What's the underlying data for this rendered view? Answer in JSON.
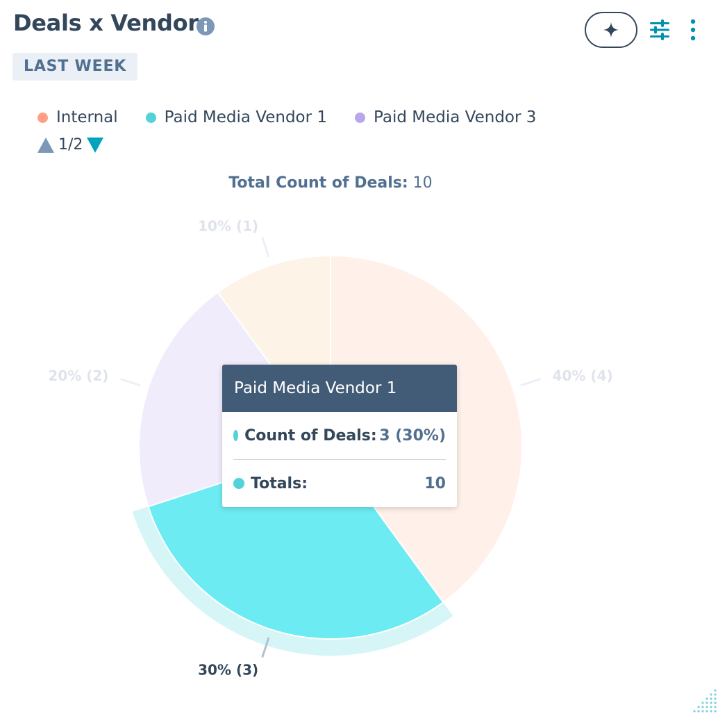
{
  "header": {
    "title": "Deals x Vendor",
    "date_badge": "LAST WEEK"
  },
  "icons": {
    "info": "info-icon",
    "ai": "sparkle-icon",
    "filter": "sliders-icon",
    "more": "more-vertical-icon"
  },
  "legend": {
    "items": [
      {
        "label": "Internal",
        "color": "#ff9f86"
      },
      {
        "label": "Paid Media Vendor 1",
        "color": "#51d3d9"
      },
      {
        "label": "Paid Media Vendor 3",
        "color": "#b9a7eb"
      }
    ],
    "page": "1/2"
  },
  "total": {
    "label": "Total Count of Deals:",
    "value": "10"
  },
  "chart_data": {
    "type": "pie",
    "title": "",
    "total_label": "Total Count of Deals:",
    "total": 10,
    "slices": [
      {
        "value": 4,
        "label": "40% (4)",
        "color": "#fff0ea",
        "highlighted": false
      },
      {
        "value": 3,
        "label": "30% (3)",
        "color": "#6cebf2",
        "highlighted": true
      },
      {
        "value": 2,
        "label": "20% (2)",
        "color": "#f0ecfb",
        "highlighted": false
      },
      {
        "value": 1,
        "label": "10% (1)",
        "color": "#fdf4e7",
        "highlighted": false
      }
    ],
    "start_angle_deg": 0,
    "direction": "clockwise"
  },
  "tooltip": {
    "title": "Paid Media Vendor 1",
    "dot_color": "#51d3d9",
    "rows": [
      {
        "label": "Count of Deals:",
        "value": "3 (30%)"
      },
      {
        "label": "Totals:",
        "value": "10"
      }
    ]
  }
}
